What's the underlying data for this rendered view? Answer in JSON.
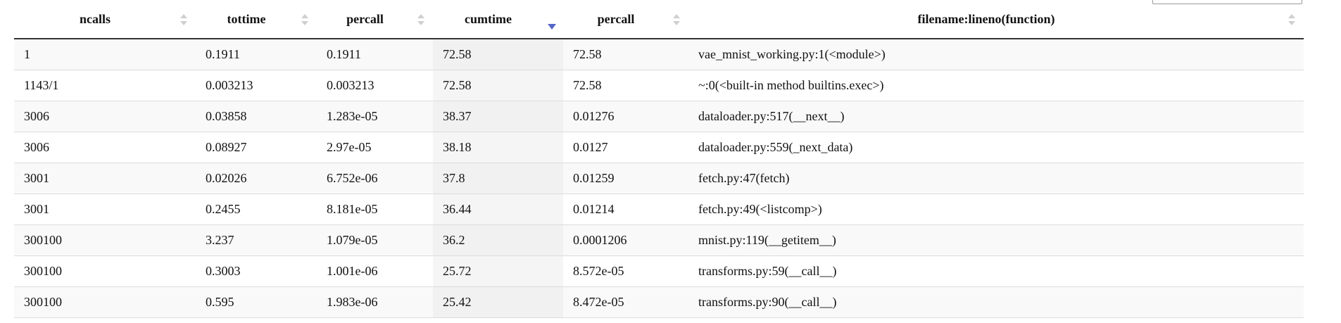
{
  "table": {
    "columns": [
      {
        "label": "ncalls",
        "sort": "none"
      },
      {
        "label": "tottime",
        "sort": "none"
      },
      {
        "label": "percall",
        "sort": "none"
      },
      {
        "label": "cumtime",
        "sort": "descending"
      },
      {
        "label": "percall",
        "sort": "none"
      },
      {
        "label": "filename:lineno(function)",
        "sort": "none"
      }
    ],
    "rows": [
      {
        "ncalls": "1",
        "tottime": "0.1911",
        "percall_tot": "0.1911",
        "cumtime": "72.58",
        "percall_cum": "72.58",
        "location": "vae_mnist_working.py:1(<module>)"
      },
      {
        "ncalls": "1143/1",
        "tottime": "0.003213",
        "percall_tot": "0.003213",
        "cumtime": "72.58",
        "percall_cum": "72.58",
        "location": "~:0(<built-in method builtins.exec>)"
      },
      {
        "ncalls": "3006",
        "tottime": "0.03858",
        "percall_tot": "1.283e-05",
        "cumtime": "38.37",
        "percall_cum": "0.01276",
        "location": "dataloader.py:517(__next__)"
      },
      {
        "ncalls": "3006",
        "tottime": "0.08927",
        "percall_tot": "2.97e-05",
        "cumtime": "38.18",
        "percall_cum": "0.0127",
        "location": "dataloader.py:559(_next_data)"
      },
      {
        "ncalls": "3001",
        "tottime": "0.02026",
        "percall_tot": "6.752e-06",
        "cumtime": "37.8",
        "percall_cum": "0.01259",
        "location": "fetch.py:47(fetch)"
      },
      {
        "ncalls": "3001",
        "tottime": "0.2455",
        "percall_tot": "8.181e-05",
        "cumtime": "36.44",
        "percall_cum": "0.01214",
        "location": "fetch.py:49(<listcomp>)"
      },
      {
        "ncalls": "300100",
        "tottime": "3.237",
        "percall_tot": "1.079e-05",
        "cumtime": "36.2",
        "percall_cum": "0.0001206",
        "location": "mnist.py:119(__getitem__)"
      },
      {
        "ncalls": "300100",
        "tottime": "0.3003",
        "percall_tot": "1.001e-06",
        "cumtime": "25.72",
        "percall_cum": "8.572e-05",
        "location": "transforms.py:59(__call__)"
      },
      {
        "ncalls": "300100",
        "tottime": "0.595",
        "percall_tot": "1.983e-06",
        "cumtime": "25.42",
        "percall_cum": "8.472e-05",
        "location": "transforms.py:90(__call__)"
      }
    ]
  }
}
